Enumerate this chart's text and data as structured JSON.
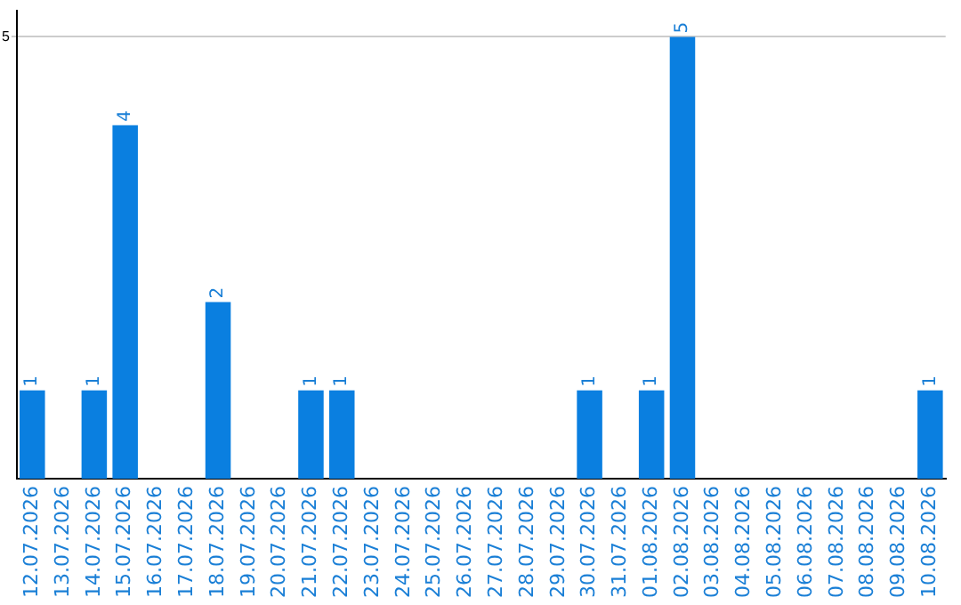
{
  "chart_data": {
    "type": "bar",
    "categories": [
      "12.07.2026",
      "13.07.2026",
      "14.07.2026",
      "15.07.2026",
      "16.07.2026",
      "17.07.2026",
      "18.07.2026",
      "19.07.2026",
      "20.07.2026",
      "21.07.2026",
      "22.07.2026",
      "23.07.2026",
      "24.07.2026",
      "25.07.2026",
      "26.07.2026",
      "27.07.2026",
      "28.07.2026",
      "29.07.2026",
      "30.07.2026",
      "31.07.2026",
      "01.08.2026",
      "02.08.2026",
      "03.08.2026",
      "04.08.2026",
      "05.08.2026",
      "06.08.2026",
      "07.08.2026",
      "08.08.2026",
      "09.08.2026",
      "10.08.2026"
    ],
    "values": [
      1,
      0,
      1,
      4,
      0,
      0,
      2,
      0,
      0,
      1,
      1,
      0,
      0,
      0,
      0,
      0,
      0,
      0,
      1,
      0,
      1,
      5,
      0,
      0,
      0,
      0,
      0,
      0,
      0,
      1
    ],
    "value_labels": [
      "1",
      null,
      "1",
      "4",
      null,
      null,
      "2",
      null,
      null,
      "1",
      "1",
      null,
      null,
      null,
      null,
      null,
      null,
      null,
      "1",
      null,
      "1",
      "5",
      null,
      null,
      null,
      null,
      null,
      null,
      null,
      "1"
    ],
    "color": "#0a7fe0",
    "ylim": [
      0,
      5.3
    ],
    "yticks": [
      5
    ],
    "grid": "y",
    "legend": false
  }
}
